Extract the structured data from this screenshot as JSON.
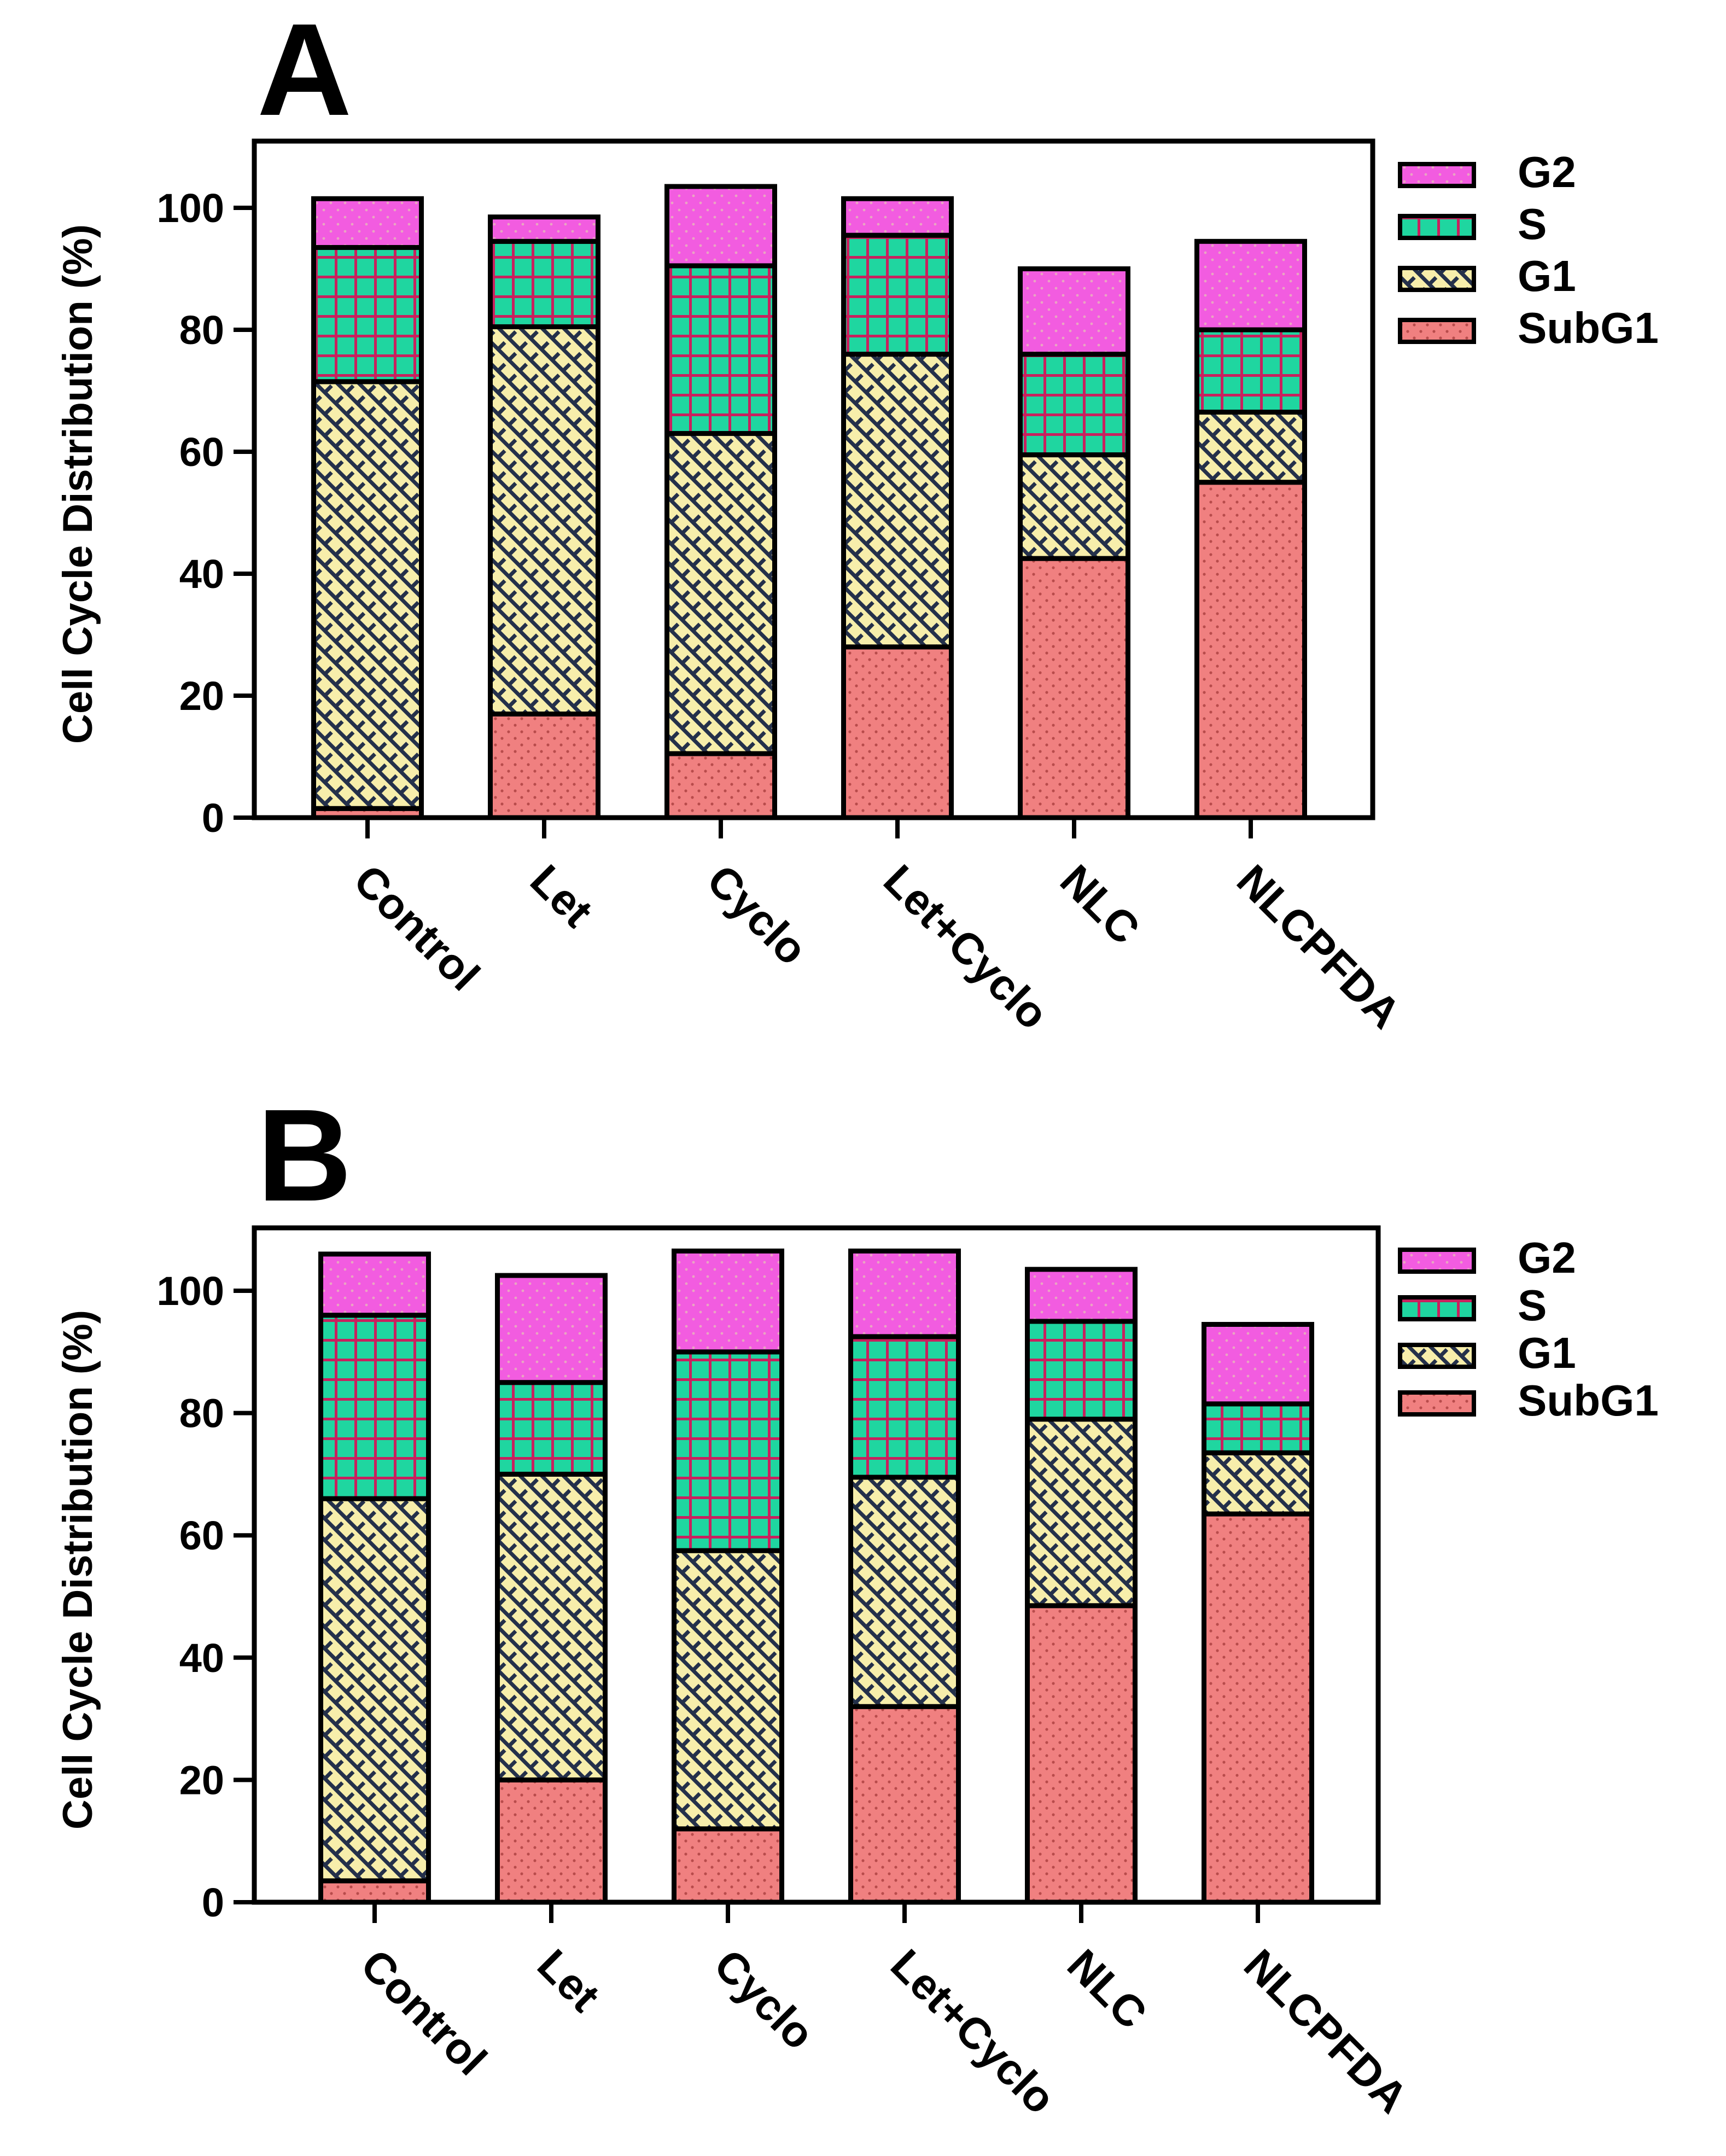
{
  "chart_data": [
    {
      "type": "bar",
      "stacked": true,
      "panel": "A",
      "categories": [
        "Control",
        "Let",
        "Cyclo",
        "Let+Cyclo",
        "NLC",
        "NLCPFDA"
      ],
      "ylabel": "Cell Cycle Distribution (%)",
      "xlabel": "",
      "ylim": [
        0,
        110
      ],
      "yticks": [
        0,
        20,
        40,
        60,
        80,
        100
      ],
      "legend_position": "right",
      "series": [
        {
          "name": "SubG1",
          "values": [
            1.5,
            17,
            10.5,
            28,
            42.5,
            55
          ]
        },
        {
          "name": "G1",
          "values": [
            70,
            63.5,
            52.5,
            48,
            17,
            11.5
          ]
        },
        {
          "name": "S",
          "values": [
            22,
            14,
            27.5,
            19.5,
            16.5,
            13.5
          ]
        },
        {
          "name": "G2",
          "values": [
            8,
            4,
            13,
            6,
            14,
            14.5
          ]
        }
      ]
    },
    {
      "type": "bar",
      "stacked": true,
      "panel": "B",
      "categories": [
        "Control",
        "Let",
        "Cyclo",
        "Let+Cyclo",
        "NLC",
        "NLCPFDA"
      ],
      "ylabel": "Cell Cycle Distribution (%)",
      "xlabel": "",
      "ylim": [
        0,
        110
      ],
      "yticks": [
        0,
        20,
        40,
        60,
        80,
        100
      ],
      "legend_position": "right",
      "series": [
        {
          "name": "SubG1",
          "values": [
            3.5,
            20,
            12,
            32,
            48.5,
            63.5
          ]
        },
        {
          "name": "G1",
          "values": [
            62.5,
            50,
            45.5,
            37.5,
            30.5,
            10
          ]
        },
        {
          "name": "S",
          "values": [
            30,
            15,
            32.5,
            23,
            16,
            8
          ]
        },
        {
          "name": "G2",
          "values": [
            10,
            17.5,
            16.5,
            14,
            8.5,
            13
          ]
        }
      ]
    }
  ],
  "colors": {
    "SubG1": "#f08080",
    "G1": "#f7eeab",
    "S": "#1fd6a0",
    "G2": "#f25ce0",
    "outline": "#000000"
  }
}
